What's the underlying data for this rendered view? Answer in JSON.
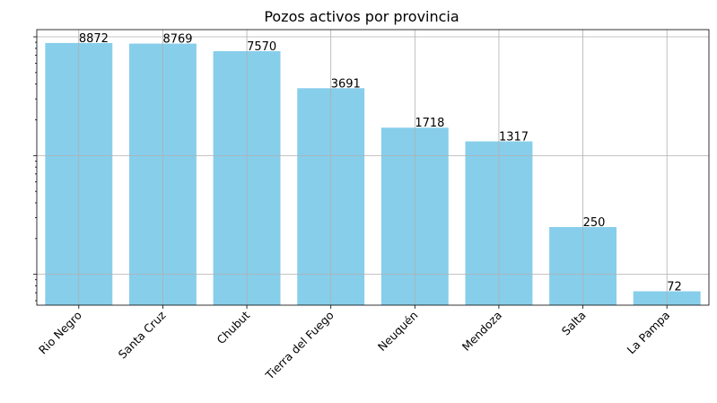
{
  "chart_data": {
    "type": "bar",
    "title": "Pozos activos por provincia",
    "xlabel": "",
    "ylabel": "",
    "yscale": "log",
    "ylim": [
      55,
      11500
    ],
    "grid": true,
    "bar_color": "#87ceeb",
    "categories": [
      "Rio Negro",
      "Santa Cruz",
      "Chubut",
      "Tierra del Fuego",
      "Neuquén",
      "Mendoza",
      "Salta",
      "La Pampa"
    ],
    "values": [
      8872,
      8769,
      7570,
      3691,
      1718,
      1317,
      250,
      72
    ],
    "data_labels": [
      "8872",
      "8769",
      "7570",
      "3691",
      "1718",
      "1317",
      "250",
      "72"
    ]
  }
}
